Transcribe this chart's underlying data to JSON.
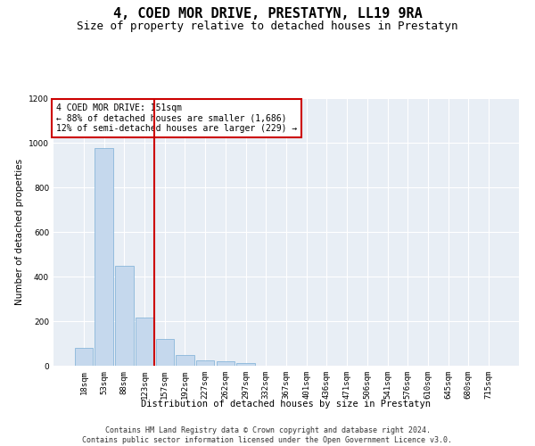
{
  "title": "4, COED MOR DRIVE, PRESTATYN, LL19 9RA",
  "subtitle": "Size of property relative to detached houses in Prestatyn",
  "xlabel": "Distribution of detached houses by size in Prestatyn",
  "ylabel": "Number of detached properties",
  "bar_color": "#c5d8ed",
  "bar_edge_color": "#7aaed6",
  "background_color": "#e8eef5",
  "grid_color": "#ffffff",
  "annotation_box_color": "#cc0000",
  "vline_color": "#cc0000",
  "vline_position": 3.5,
  "annotation_text": "4 COED MOR DRIVE: 151sqm\n← 88% of detached houses are smaller (1,686)\n12% of semi-detached houses are larger (229) →",
  "categories": [
    "18sqm",
    "53sqm",
    "88sqm",
    "123sqm",
    "157sqm",
    "192sqm",
    "227sqm",
    "262sqm",
    "297sqm",
    "332sqm",
    "367sqm",
    "401sqm",
    "436sqm",
    "471sqm",
    "506sqm",
    "541sqm",
    "576sqm",
    "610sqm",
    "645sqm",
    "680sqm",
    "715sqm"
  ],
  "values": [
    80,
    975,
    450,
    215,
    120,
    48,
    25,
    22,
    12,
    0,
    0,
    0,
    0,
    0,
    0,
    0,
    0,
    0,
    0,
    0,
    0
  ],
  "ylim": [
    0,
    1200
  ],
  "yticks": [
    0,
    200,
    400,
    600,
    800,
    1000,
    1200
  ],
  "footer": "Contains HM Land Registry data © Crown copyright and database right 2024.\nContains public sector information licensed under the Open Government Licence v3.0.",
  "title_fontsize": 11,
  "subtitle_fontsize": 9,
  "label_fontsize": 7.5,
  "tick_fontsize": 6.5,
  "footer_fontsize": 6,
  "annotation_fontsize": 7
}
